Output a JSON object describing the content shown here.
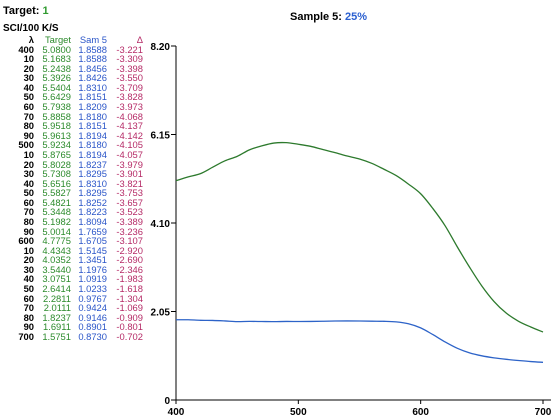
{
  "header": {
    "target_label": "Target:",
    "target_value": "1",
    "sample_label": "Sample 5:",
    "sample_value": "25%",
    "units": "SCI/100   K/S"
  },
  "table": {
    "headers": [
      "λ",
      "Target",
      "Sam 5",
      "Δ"
    ],
    "rows": [
      [
        "400",
        "5.0800",
        "1.8588",
        "-3.221"
      ],
      [
        "10",
        "5.1683",
        "1.8588",
        "-3.309"
      ],
      [
        "20",
        "5.2438",
        "1.8456",
        "-3.398"
      ],
      [
        "30",
        "5.3926",
        "1.8426",
        "-3.550"
      ],
      [
        "40",
        "5.5404",
        "1.8310",
        "-3.709"
      ],
      [
        "50",
        "5.6429",
        "1.8151",
        "-3.828"
      ],
      [
        "60",
        "5.7938",
        "1.8209",
        "-3.973"
      ],
      [
        "70",
        "5.8858",
        "1.8180",
        "-4.068"
      ],
      [
        "80",
        "5.9518",
        "1.8151",
        "-4.137"
      ],
      [
        "90",
        "5.9613",
        "1.8194",
        "-4.142"
      ],
      [
        "500",
        "5.9234",
        "1.8180",
        "-4.105"
      ],
      [
        "10",
        "5.8765",
        "1.8194",
        "-4.057"
      ],
      [
        "20",
        "5.8028",
        "1.8237",
        "-3.979"
      ],
      [
        "30",
        "5.7308",
        "1.8295",
        "-3.901"
      ],
      [
        "40",
        "5.6516",
        "1.8310",
        "-3.821"
      ],
      [
        "50",
        "5.5827",
        "1.8295",
        "-3.753"
      ],
      [
        "60",
        "5.4821",
        "1.8252",
        "-3.657"
      ],
      [
        "70",
        "5.3448",
        "1.8223",
        "-3.523"
      ],
      [
        "80",
        "5.1982",
        "1.8094",
        "-3.389"
      ],
      [
        "90",
        "5.0014",
        "1.7659",
        "-3.236"
      ],
      [
        "600",
        "4.7775",
        "1.6705",
        "-3.107"
      ],
      [
        "10",
        "4.4343",
        "1.5145",
        "-2.920"
      ],
      [
        "20",
        "4.0352",
        "1.3451",
        "-2.690"
      ],
      [
        "30",
        "3.5440",
        "1.1976",
        "-2.346"
      ],
      [
        "40",
        "3.0751",
        "1.0919",
        "-1.983"
      ],
      [
        "50",
        "2.6414",
        "1.0233",
        "-1.618"
      ],
      [
        "60",
        "2.2811",
        "0.9767",
        "-1.304"
      ],
      [
        "70",
        "2.0111",
        "0.9424",
        "-1.069"
      ],
      [
        "80",
        "1.8237",
        "0.9146",
        "-0.909"
      ],
      [
        "90",
        "1.6911",
        "0.8901",
        "-0.801"
      ],
      [
        "700",
        "1.5751",
        "0.8730",
        "-0.702"
      ]
    ]
  },
  "chart_data": {
    "type": "line",
    "x": [
      400,
      410,
      420,
      430,
      440,
      450,
      460,
      470,
      480,
      490,
      500,
      510,
      520,
      530,
      540,
      550,
      560,
      570,
      580,
      590,
      600,
      610,
      620,
      630,
      640,
      650,
      660,
      670,
      680,
      690,
      700
    ],
    "series": [
      {
        "color": "#2d7a2d",
        "values": [
          5.08,
          5.1683,
          5.2438,
          5.3926,
          5.5404,
          5.6429,
          5.7938,
          5.8858,
          5.9518,
          5.9613,
          5.9234,
          5.8765,
          5.8028,
          5.7308,
          5.6516,
          5.5827,
          5.4821,
          5.3448,
          5.1982,
          5.0014,
          4.7775,
          4.4343,
          4.0352,
          3.544,
          3.0751,
          2.6414,
          2.2811,
          2.0111,
          1.8237,
          1.6911,
          1.5751
        ]
      },
      {
        "color": "#2d63c8",
        "values": [
          1.8588,
          1.8588,
          1.8456,
          1.8426,
          1.831,
          1.8151,
          1.8209,
          1.818,
          1.8151,
          1.8194,
          1.818,
          1.8194,
          1.8237,
          1.8295,
          1.831,
          1.8295,
          1.8252,
          1.8223,
          1.8094,
          1.7659,
          1.6705,
          1.5145,
          1.3451,
          1.1976,
          1.0919,
          1.0233,
          0.9767,
          0.9424,
          0.9146,
          0.8901,
          0.873
        ]
      }
    ],
    "xlim": [
      400,
      700
    ],
    "ylim": [
      0,
      8.2
    ],
    "x_ticks": [
      400,
      500,
      600,
      700
    ],
    "y_ticks": [
      0,
      2.05,
      4.1,
      6.15,
      8.2
    ],
    "x_tick_labels": [
      "400",
      "500",
      "600",
      "700"
    ],
    "y_tick_labels": [
      "0",
      "2.05",
      "4.10",
      "6.15",
      "8.20"
    ],
    "grid": false,
    "title": "",
    "xlabel": "",
    "ylabel": ""
  }
}
